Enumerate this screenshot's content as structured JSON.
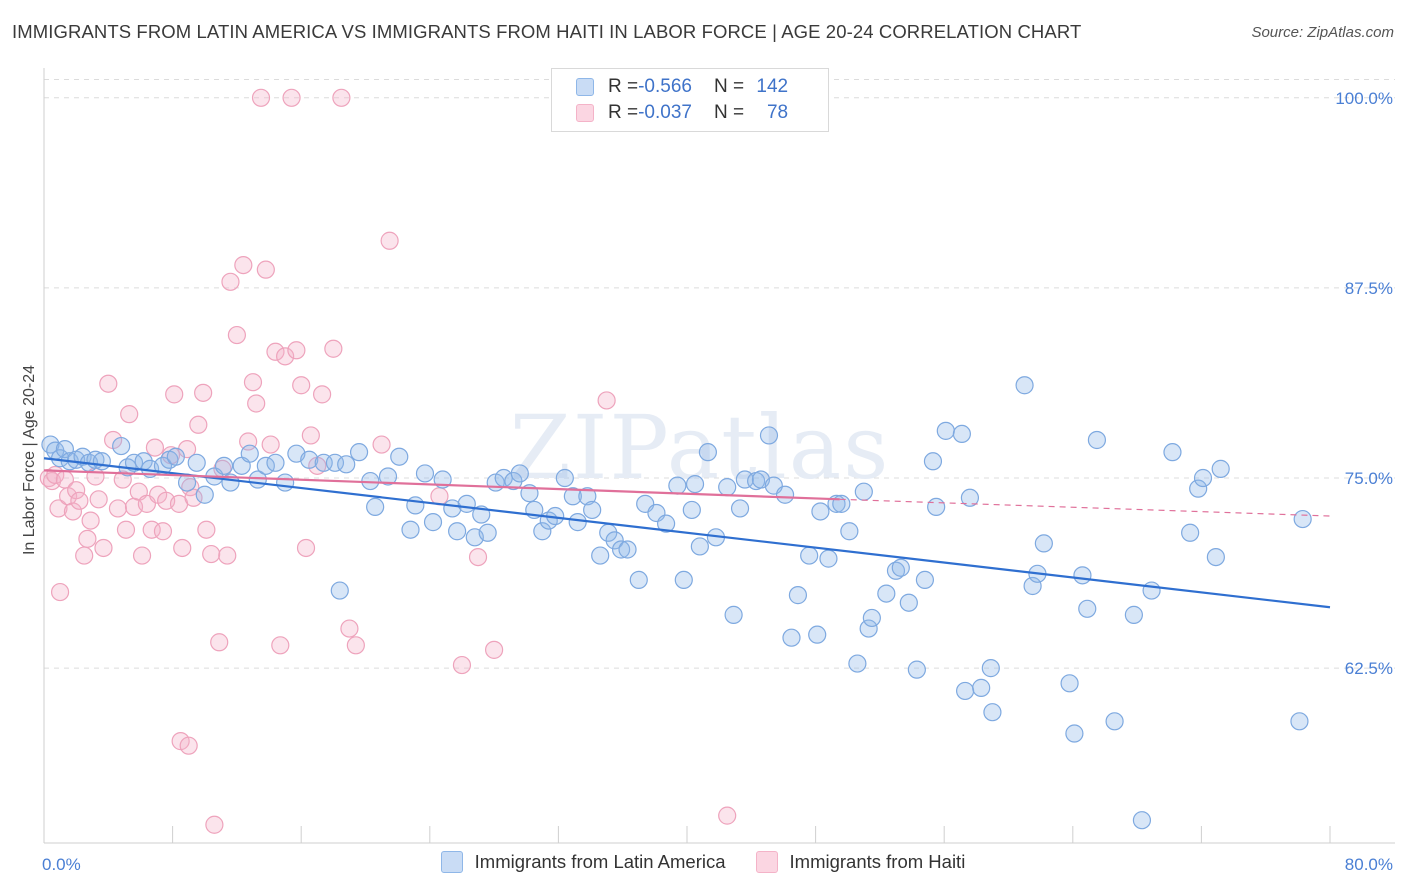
{
  "title": "IMMIGRANTS FROM LATIN AMERICA VS IMMIGRANTS FROM HAITI IN LABOR FORCE | AGE 20-24 CORRELATION CHART",
  "source": "Source: ZipAtlas.com",
  "watermark": "ZIPatlas",
  "legend": {
    "row1": {
      "r_label": "R = ",
      "r_value": "-0.566",
      "n_label": "N = ",
      "n_value": "142"
    },
    "row2": {
      "r_label": "R = ",
      "r_value": "-0.037",
      "n_label": "N = ",
      "n_value": "78"
    }
  },
  "chart_data": {
    "type": "scatter",
    "title": "IMMIGRANTS FROM LATIN AMERICA VS IMMIGRANTS FROM HAITI IN LABOR FORCE | AGE 20-24 CORRELATION CHART",
    "xlabel": "",
    "ylabel": "In Labor Force | Age 20-24",
    "xlim": [
      0,
      80
    ],
    "ylim": [
      51,
      101.5
    ],
    "x_tick_labels": [
      "0.0%",
      "80.0%"
    ],
    "y_ticks": [
      62.5,
      75.0,
      87.5,
      100.0
    ],
    "y_tick_labels": [
      "62.5%",
      "75.0%",
      "87.5%",
      "100.0%"
    ],
    "grid": true,
    "legend_placement": "top-center",
    "series": [
      {
        "name": "Immigrants from Latin America",
        "color": "#8fb7e8",
        "line_color": "#2f6fd0",
        "trend": {
          "x0": 0,
          "y0": 76.3,
          "x1": 80,
          "y1": 66.5
        },
        "points": [
          [
            0.4,
            77.2
          ],
          [
            0.7,
            76.8
          ],
          [
            1.0,
            76.3
          ],
          [
            1.3,
            76.9
          ],
          [
            1.6,
            76.1
          ],
          [
            2.0,
            76.2
          ],
          [
            2.4,
            76.4
          ],
          [
            2.8,
            76.0
          ],
          [
            3.2,
            76.2
          ],
          [
            3.6,
            76.1
          ],
          [
            4.8,
            77.1
          ],
          [
            5.2,
            75.7
          ],
          [
            5.6,
            76.0
          ],
          [
            6.2,
            76.1
          ],
          [
            6.6,
            75.6
          ],
          [
            7.4,
            75.8
          ],
          [
            7.8,
            76.2
          ],
          [
            8.2,
            76.4
          ],
          [
            8.9,
            74.7
          ],
          [
            9.5,
            76.0
          ],
          [
            10.0,
            73.9
          ],
          [
            10.6,
            75.1
          ],
          [
            11.2,
            75.8
          ],
          [
            11.6,
            74.7
          ],
          [
            12.3,
            75.8
          ],
          [
            12.8,
            76.6
          ],
          [
            13.3,
            74.9
          ],
          [
            13.8,
            75.8
          ],
          [
            14.4,
            76.0
          ],
          [
            15.0,
            74.7
          ],
          [
            15.7,
            76.6
          ],
          [
            16.5,
            76.2
          ],
          [
            17.4,
            76.0
          ],
          [
            18.1,
            76.0
          ],
          [
            18.4,
            67.6
          ],
          [
            18.8,
            75.9
          ],
          [
            19.6,
            76.7
          ],
          [
            20.3,
            74.8
          ],
          [
            20.6,
            73.1
          ],
          [
            21.4,
            75.1
          ],
          [
            22.1,
            76.4
          ],
          [
            22.8,
            71.6
          ],
          [
            23.1,
            73.2
          ],
          [
            23.7,
            75.3
          ],
          [
            24.2,
            72.1
          ],
          [
            24.8,
            74.9
          ],
          [
            25.4,
            73.0
          ],
          [
            25.7,
            71.5
          ],
          [
            26.3,
            73.3
          ],
          [
            26.8,
            71.1
          ],
          [
            27.2,
            72.6
          ],
          [
            27.6,
            71.4
          ],
          [
            28.1,
            74.7
          ],
          [
            28.6,
            75.0
          ],
          [
            29.2,
            74.8
          ],
          [
            29.6,
            75.3
          ],
          [
            30.2,
            74.0
          ],
          [
            30.5,
            72.9
          ],
          [
            31.0,
            71.5
          ],
          [
            31.4,
            72.2
          ],
          [
            31.8,
            72.5
          ],
          [
            32.4,
            75.0
          ],
          [
            32.9,
            73.8
          ],
          [
            33.2,
            72.1
          ],
          [
            33.8,
            73.8
          ],
          [
            34.1,
            72.9
          ],
          [
            34.6,
            69.9
          ],
          [
            35.1,
            71.4
          ],
          [
            35.5,
            70.9
          ],
          [
            35.9,
            70.3
          ],
          [
            36.3,
            70.3
          ],
          [
            37.0,
            68.3
          ],
          [
            37.4,
            73.3
          ],
          [
            38.1,
            72.7
          ],
          [
            38.7,
            72.0
          ],
          [
            39.4,
            74.5
          ],
          [
            39.8,
            68.3
          ],
          [
            40.3,
            72.9
          ],
          [
            40.5,
            74.6
          ],
          [
            40.8,
            70.5
          ],
          [
            41.3,
            76.7
          ],
          [
            41.8,
            71.1
          ],
          [
            42.5,
            74.4
          ],
          [
            42.9,
            66.0
          ],
          [
            43.3,
            73.0
          ],
          [
            43.6,
            74.9
          ],
          [
            44.3,
            74.8
          ],
          [
            44.6,
            74.9
          ],
          [
            45.1,
            77.8
          ],
          [
            45.4,
            74.5
          ],
          [
            46.1,
            73.9
          ],
          [
            46.5,
            64.5
          ],
          [
            46.9,
            67.3
          ],
          [
            47.6,
            69.9
          ],
          [
            48.1,
            64.7
          ],
          [
            48.3,
            72.8
          ],
          [
            48.8,
            69.7
          ],
          [
            49.3,
            73.3
          ],
          [
            49.6,
            73.3
          ],
          [
            50.1,
            71.5
          ],
          [
            50.6,
            62.8
          ],
          [
            51.0,
            74.1
          ],
          [
            51.3,
            65.1
          ],
          [
            51.5,
            65.8
          ],
          [
            52.4,
            67.4
          ],
          [
            53.0,
            68.9
          ],
          [
            53.3,
            69.1
          ],
          [
            53.8,
            66.8
          ],
          [
            54.3,
            62.4
          ],
          [
            54.8,
            68.3
          ],
          [
            55.3,
            76.1
          ],
          [
            55.5,
            73.1
          ],
          [
            56.1,
            78.1
          ],
          [
            57.1,
            77.9
          ],
          [
            57.3,
            61.0
          ],
          [
            57.6,
            73.7
          ],
          [
            58.3,
            61.2
          ],
          [
            58.9,
            62.5
          ],
          [
            59.0,
            59.6
          ],
          [
            61.0,
            81.1
          ],
          [
            61.5,
            67.9
          ],
          [
            61.8,
            68.7
          ],
          [
            62.2,
            70.7
          ],
          [
            63.8,
            61.5
          ],
          [
            64.1,
            58.2
          ],
          [
            64.6,
            68.6
          ],
          [
            64.9,
            66.4
          ],
          [
            65.5,
            77.5
          ],
          [
            66.6,
            59.0
          ],
          [
            67.8,
            66.0
          ],
          [
            68.3,
            52.5
          ],
          [
            68.9,
            67.6
          ],
          [
            70.2,
            76.7
          ],
          [
            71.3,
            71.4
          ],
          [
            71.8,
            74.3
          ],
          [
            72.1,
            75.0
          ],
          [
            72.9,
            69.8
          ],
          [
            73.2,
            75.6
          ],
          [
            78.3,
            72.3
          ],
          [
            78.1,
            59.0
          ]
        ]
      },
      {
        "name": "Immigrants from Haiti",
        "color": "#f4b3c8",
        "line_color": "#e0709a",
        "trend": {
          "x0": 0,
          "y0": 75.5,
          "x1": 49.5,
          "y1": 73.6
        },
        "trend_ext": {
          "x0": 49.5,
          "y0": 73.6,
          "x1": 80,
          "y1": 72.5
        },
        "points": [
          [
            0.3,
            75.0
          ],
          [
            0.5,
            74.8
          ],
          [
            0.7,
            75.2
          ],
          [
            0.9,
            73.0
          ],
          [
            1.0,
            67.5
          ],
          [
            1.3,
            74.9
          ],
          [
            1.5,
            73.8
          ],
          [
            1.8,
            72.8
          ],
          [
            2.0,
            74.2
          ],
          [
            2.2,
            73.5
          ],
          [
            2.5,
            69.9
          ],
          [
            2.7,
            71.0
          ],
          [
            2.9,
            72.2
          ],
          [
            3.2,
            75.1
          ],
          [
            3.4,
            73.6
          ],
          [
            3.7,
            70.4
          ],
          [
            4.0,
            81.2
          ],
          [
            4.3,
            77.5
          ],
          [
            4.6,
            73.0
          ],
          [
            4.9,
            74.9
          ],
          [
            5.1,
            71.6
          ],
          [
            5.3,
            79.2
          ],
          [
            5.6,
            73.1
          ],
          [
            5.9,
            74.1
          ],
          [
            6.1,
            69.9
          ],
          [
            6.4,
            73.3
          ],
          [
            6.7,
            71.6
          ],
          [
            6.9,
            77.0
          ],
          [
            7.1,
            73.9
          ],
          [
            7.4,
            71.5
          ],
          [
            7.6,
            73.5
          ],
          [
            7.9,
            76.5
          ],
          [
            8.1,
            80.5
          ],
          [
            8.4,
            73.3
          ],
          [
            8.6,
            70.4
          ],
          [
            8.9,
            76.9
          ],
          [
            9.1,
            74.4
          ],
          [
            9.3,
            73.7
          ],
          [
            9.6,
            78.5
          ],
          [
            9.9,
            80.6
          ],
          [
            10.1,
            71.6
          ],
          [
            10.4,
            70.0
          ],
          [
            10.6,
            52.2
          ],
          [
            10.9,
            64.2
          ],
          [
            11.1,
            75.6
          ],
          [
            11.4,
            69.9
          ],
          [
            11.6,
            87.9
          ],
          [
            12.0,
            84.4
          ],
          [
            12.4,
            89.0
          ],
          [
            12.7,
            77.4
          ],
          [
            13.0,
            81.3
          ],
          [
            13.2,
            79.9
          ],
          [
            13.5,
            100.0
          ],
          [
            13.8,
            88.7
          ],
          [
            14.1,
            77.2
          ],
          [
            14.4,
            83.3
          ],
          [
            14.7,
            64.0
          ],
          [
            15.0,
            83.0
          ],
          [
            15.4,
            100.0
          ],
          [
            15.7,
            83.4
          ],
          [
            16.0,
            81.1
          ],
          [
            16.3,
            70.4
          ],
          [
            16.6,
            77.8
          ],
          [
            17.0,
            75.8
          ],
          [
            17.3,
            80.5
          ],
          [
            18.0,
            83.5
          ],
          [
            18.5,
            100.0
          ],
          [
            19.0,
            65.1
          ],
          [
            19.4,
            64.0
          ],
          [
            21.0,
            77.2
          ],
          [
            21.5,
            90.6
          ],
          [
            24.6,
            73.8
          ],
          [
            26.0,
            62.7
          ],
          [
            27.0,
            69.8
          ],
          [
            28.0,
            63.7
          ],
          [
            35.0,
            80.1
          ],
          [
            42.5,
            52.8
          ],
          [
            8.5,
            57.7
          ],
          [
            9.0,
            57.4
          ]
        ]
      }
    ]
  },
  "bottom_legend": [
    {
      "label": "Immigrants from Latin America"
    },
    {
      "label": "Immigrants from Haiti"
    }
  ]
}
